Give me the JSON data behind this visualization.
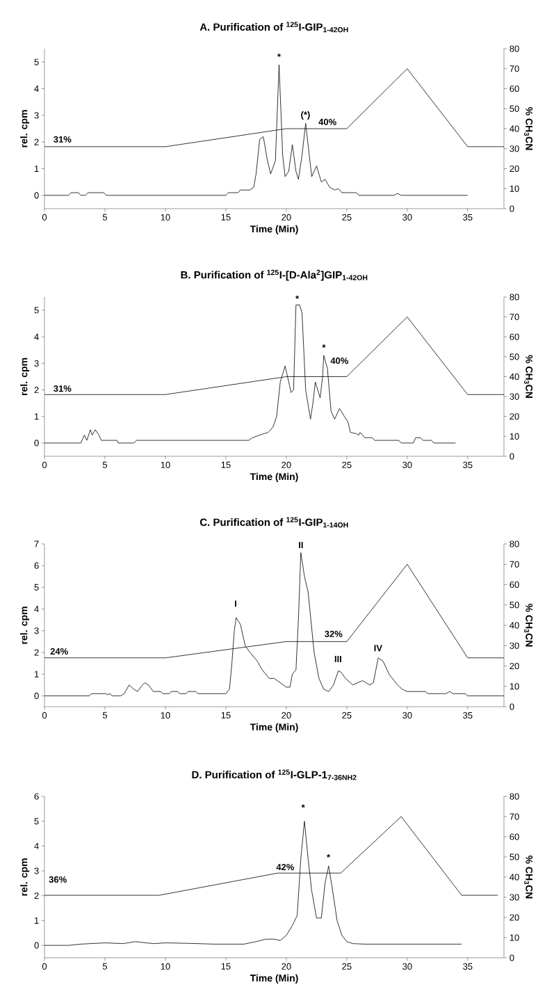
{
  "chart_data": [
    {
      "type": "line",
      "title": "A. Purification of $^{125}$I-GIP$_{1-42OH}$",
      "xlabel": "Time (Min)",
      "ylabel": "rel. cpm",
      "y2label": "% CH$_{3}$CN",
      "xlim": [
        0,
        38
      ],
      "xticks": [
        0,
        5,
        10,
        15,
        20,
        25,
        30,
        35
      ],
      "ylim": [
        -0.5,
        5.5
      ],
      "yticks": [
        0,
        1,
        2,
        3,
        4,
        5
      ],
      "y2lim": [
        0,
        80
      ],
      "y2ticks": [
        0,
        10,
        20,
        30,
        40,
        50,
        60,
        70,
        80
      ],
      "series": [
        {
          "color": "#000000",
          "x": [
            0,
            2.0,
            2.2,
            2.8,
            3.0,
            3.4,
            3.6,
            4.9,
            5.1,
            15.0,
            15.2,
            16.0,
            16.2,
            17.0,
            17.3,
            17.5,
            17.8,
            18.1,
            18.4,
            18.7,
            19.1,
            19.4,
            19.7,
            19.9,
            20.2,
            20.5,
            20.8,
            21.0,
            21.3,
            21.6,
            21.9,
            22.1,
            22.5,
            22.9,
            23.2,
            23.6,
            24.0,
            24.3,
            24.6,
            25.8,
            26.0,
            28.9,
            29.2,
            29.5,
            35.0
          ],
          "values": [
            0,
            0,
            0.1,
            0.1,
            0,
            0,
            0.1,
            0.1,
            0,
            0,
            0.1,
            0.1,
            0.2,
            0.2,
            0.3,
            0.8,
            2.1,
            2.2,
            1.4,
            0.8,
            1.3,
            4.9,
            1.5,
            0.7,
            0.9,
            1.9,
            0.9,
            0.6,
            1.5,
            2.7,
            1.5,
            0.7,
            1.1,
            0.5,
            0.6,
            0.3,
            0.2,
            0.25,
            0.1,
            0.1,
            0,
            0,
            0.07,
            0,
            0
          ]
        },
        {
          "color": "#000000",
          "axis": "y2",
          "x": [
            0,
            10,
            20,
            25,
            30,
            35,
            38
          ],
          "values": [
            31,
            31,
            40,
            40,
            70,
            31,
            31
          ]
        }
      ],
      "annotations": [
        "*",
        "(*)",
        "31%",
        "40%"
      ]
    },
    {
      "type": "line",
      "title": "B. Purification of $^{125}$I-[D-Ala$^{2}$]GIP$_{1-42OH}$",
      "xlabel": "Time (Min)",
      "ylabel": "rel. cpm",
      "y2label": "% CH$_{3}$CN",
      "xlim": [
        0,
        38
      ],
      "xticks": [
        0,
        5,
        10,
        15,
        20,
        25,
        30,
        35
      ],
      "ylim": [
        -0.5,
        5.5
      ],
      "yticks": [
        0,
        1,
        2,
        3,
        4,
        5
      ],
      "y2lim": [
        0,
        80
      ],
      "y2ticks": [
        0,
        10,
        20,
        30,
        40,
        50,
        60,
        70,
        80
      ],
      "series": [
        {
          "color": "#000000",
          "x": [
            0,
            3.0,
            3.3,
            3.5,
            3.8,
            3.95,
            4.2,
            4.5,
            4.7,
            6.0,
            6.1,
            7.4,
            7.6,
            16.9,
            17.2,
            17.8,
            18.5,
            18.9,
            19.2,
            19.5,
            19.9,
            20.4,
            20.6,
            20.8,
            21.1,
            21.3,
            21.6,
            22.0,
            22.2,
            22.4,
            22.8,
            23.0,
            23.1,
            23.4,
            23.7,
            24.0,
            24.4,
            24.8,
            25.1,
            25.3,
            25.8,
            26.0,
            26.1,
            26.3,
            26.5,
            27.1,
            27.3,
            29.3,
            29.5,
            30.5,
            30.7,
            31.1,
            31.3,
            32.0,
            32.2,
            34.0
          ],
          "values": [
            0,
            0,
            0.3,
            0.1,
            0.5,
            0.3,
            0.5,
            0.3,
            0.1,
            0.1,
            0,
            0,
            0.1,
            0.1,
            0.2,
            0.3,
            0.4,
            0.6,
            1.0,
            2.3,
            2.9,
            1.9,
            2.0,
            5.2,
            5.2,
            4.9,
            2.0,
            0.9,
            1.5,
            2.3,
            1.7,
            2.5,
            3.3,
            2.8,
            1.2,
            0.9,
            1.3,
            1.0,
            0.8,
            0.4,
            0.35,
            0.3,
            0.4,
            0.3,
            0.2,
            0.2,
            0.1,
            0.1,
            0,
            0,
            0.2,
            0.2,
            0.1,
            0.1,
            0,
            0
          ]
        },
        {
          "color": "#000000",
          "axis": "y2",
          "x": [
            0,
            10,
            20,
            25,
            30,
            35,
            38
          ],
          "values": [
            31,
            31,
            40,
            40,
            70,
            31,
            31
          ]
        }
      ],
      "annotations": [
        "*",
        "*",
        "31%",
        "40%"
      ]
    },
    {
      "type": "line",
      "title": "C. Purification of $^{125}$I-GIP$_{1-14OH}$",
      "xlabel": "Time (Min)",
      "ylabel": "rel. cpm",
      "y2label": "% CH$_{3}$CN",
      "xlim": [
        0,
        38
      ],
      "xticks": [
        0,
        5,
        10,
        15,
        20,
        25,
        30,
        35
      ],
      "ylim": [
        -0.5,
        7
      ],
      "yticks": [
        0,
        1,
        2,
        3,
        4,
        5,
        6,
        7
      ],
      "y2lim": [
        0,
        80
      ],
      "y2ticks": [
        0,
        10,
        20,
        30,
        40,
        50,
        60,
        70,
        80
      ],
      "series": [
        {
          "color": "#000000",
          "x": [
            0,
            3.7,
            3.9,
            5.1,
            5.2,
            5.4,
            5.6,
            6.3,
            6.6,
            7.0,
            7.4,
            7.7,
            8.1,
            8.3,
            8.6,
            9.0,
            9.6,
            9.8,
            10.3,
            10.5,
            11.0,
            11.2,
            11.7,
            11.9,
            12.5,
            12.7,
            15.0,
            15.3,
            15.5,
            15.7,
            15.85,
            16.2,
            16.6,
            17.0,
            17.6,
            18.0,
            18.6,
            19.0,
            19.5,
            20.0,
            20.3,
            20.5,
            20.8,
            21.0,
            21.2,
            21.5,
            21.8,
            22.3,
            22.7,
            23.1,
            23.5,
            23.9,
            24.3,
            24.5,
            24.9,
            25.5,
            26.3,
            26.6,
            26.9,
            27.2,
            27.6,
            28.0,
            28.5,
            29.2,
            29.6,
            30.0,
            31.5,
            31.7,
            33.2,
            33.5,
            33.8,
            34.8,
            35.0,
            38.0
          ],
          "values": [
            0,
            0,
            0.1,
            0.1,
            0.05,
            0.1,
            0,
            0,
            0.1,
            0.5,
            0.3,
            0.2,
            0.5,
            0.6,
            0.5,
            0.2,
            0.2,
            0.1,
            0.1,
            0.2,
            0.2,
            0.1,
            0.1,
            0.2,
            0.2,
            0.1,
            0.1,
            0.3,
            1.5,
            3.0,
            3.6,
            3.3,
            2.3,
            2.0,
            1.6,
            1.2,
            0.8,
            0.8,
            0.6,
            0.4,
            0.4,
            1.0,
            1.2,
            3.5,
            6.6,
            5.5,
            4.8,
            2.0,
            0.8,
            0.3,
            0.2,
            0.5,
            1.15,
            1.1,
            0.8,
            0.5,
            0.7,
            0.6,
            0.5,
            0.6,
            1.75,
            1.6,
            1.0,
            0.5,
            0.3,
            0.2,
            0.2,
            0.1,
            0.1,
            0.2,
            0.1,
            0.1,
            0,
            0
          ]
        },
        {
          "color": "#000000",
          "axis": "y2",
          "x": [
            0,
            10,
            20,
            25,
            30,
            35,
            38
          ],
          "values": [
            24,
            24,
            32,
            32,
            70,
            24,
            24
          ]
        }
      ],
      "annotations": [
        "I",
        "II",
        "III",
        "IV",
        "24%",
        "32%"
      ]
    },
    {
      "type": "line",
      "title": "D. Purification of $^{125}$I-GLP-1$_{7-36NH2}$",
      "xlabel": "Time (Min)",
      "ylabel": "rel. cpm",
      "y2label": "% CH$_{3}$CN",
      "xlim": [
        0,
        38
      ],
      "xticks": [
        0,
        5,
        10,
        15,
        20,
        25,
        30,
        35
      ],
      "ylim": [
        -0.5,
        6
      ],
      "yticks": [
        0,
        1,
        2,
        3,
        4,
        5,
        6
      ],
      "y2lim": [
        0,
        80
      ],
      "y2ticks": [
        0,
        10,
        20,
        30,
        40,
        50,
        60,
        70,
        80
      ],
      "series": [
        {
          "color": "#000000",
          "x": [
            0,
            2,
            3,
            5,
            6.5,
            7.5,
            9,
            10,
            12,
            14,
            16.5,
            17.5,
            18.3,
            19,
            19.5,
            20,
            20.5,
            20.9,
            21.2,
            21.5,
            21.8,
            22.1,
            22.5,
            22.9,
            23.2,
            23.5,
            23.8,
            24.2,
            24.6,
            25,
            25.5,
            26.5,
            34.5
          ],
          "values": [
            0,
            0,
            0.05,
            0.1,
            0.07,
            0.15,
            0.07,
            0.1,
            0.08,
            0.05,
            0.05,
            0.15,
            0.25,
            0.25,
            0.2,
            0.4,
            0.8,
            1.2,
            3.5,
            5.0,
            3.5,
            2.2,
            1.1,
            1.1,
            2.5,
            3.2,
            2.3,
            1.0,
            0.4,
            0.15,
            0.07,
            0.05,
            0.05
          ]
        },
        {
          "color": "#000000",
          "axis": "y2",
          "x": [
            0,
            9.5,
            19.3,
            24.5,
            29.5,
            34.5,
            37.5
          ],
          "values": [
            31,
            31,
            42,
            42,
            70,
            31,
            31
          ]
        }
      ],
      "annotations": [
        "*",
        "*",
        "36%",
        "42%"
      ]
    }
  ]
}
